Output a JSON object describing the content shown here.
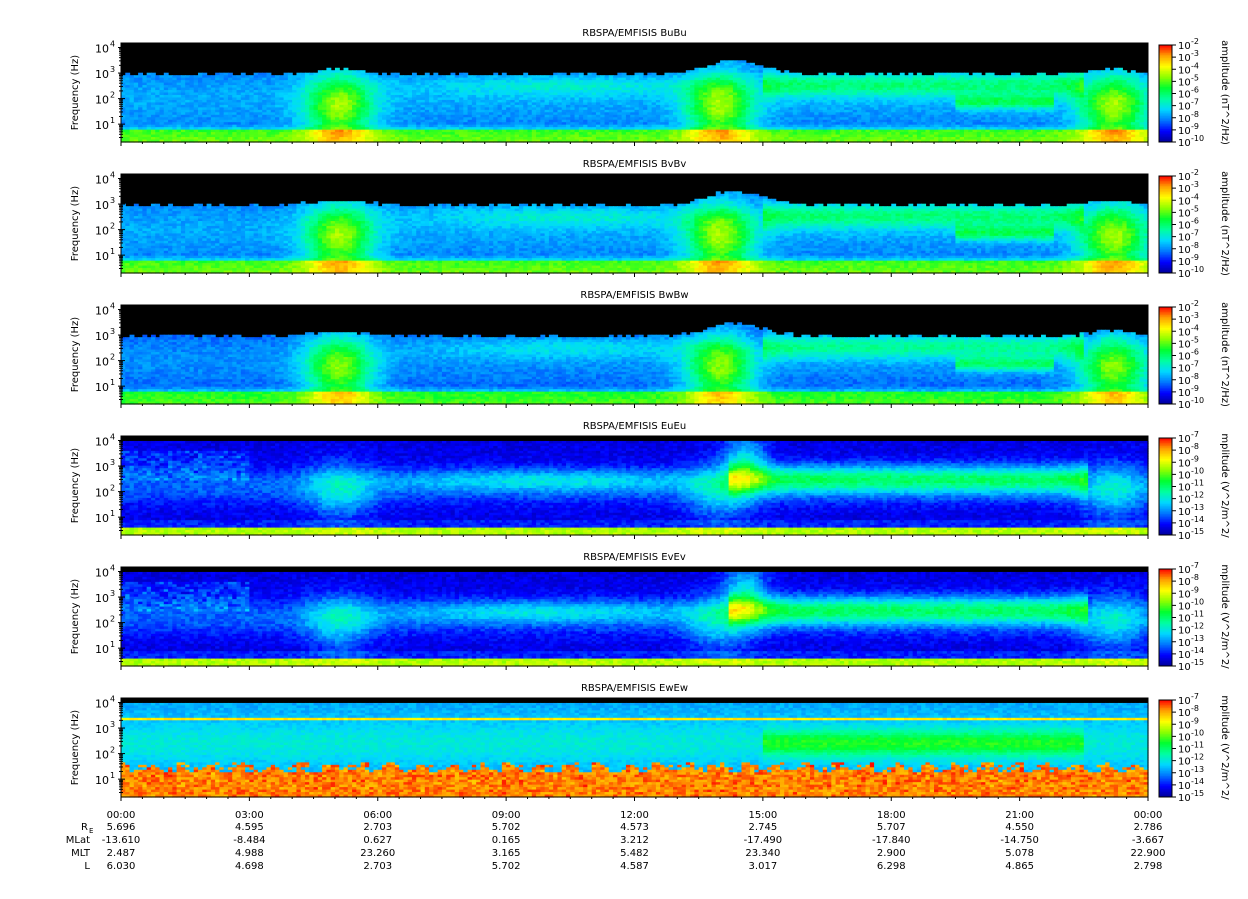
{
  "chart_data": {
    "type": "heatmap",
    "x_axis": {
      "tick_labels": [
        "00:00",
        "03:00",
        "06:00",
        "09:00",
        "12:00",
        "15:00",
        "18:00",
        "21:00",
        "00:00"
      ],
      "xlim_hours": [
        0,
        24
      ]
    },
    "y_axis": {
      "label": "Frequency (Hz)",
      "scale": "log",
      "tick_labels": [
        "10",
        "10",
        "10",
        "10"
      ],
      "tick_exponents": [
        "1",
        "2",
        "3",
        "4"
      ],
      "ylim_hz": [
        2,
        15000
      ]
    },
    "panels": [
      {
        "title": "RBSPA/EMFISIS  BuBu",
        "colorbar_label": "amplitude (nT^2/Hz)",
        "colorbar_exponents": [
          "-2",
          "-3",
          "-4",
          "-5",
          "-6",
          "-7",
          "-8",
          "-9",
          "-10"
        ],
        "field": "B",
        "variant": "u"
      },
      {
        "title": "RBSPA/EMFISIS  BvBv",
        "colorbar_label": "amplitude (nT^2/Hz)",
        "colorbar_exponents": [
          "-2",
          "-3",
          "-4",
          "-5",
          "-6",
          "-7",
          "-8",
          "-9",
          "-10"
        ],
        "field": "B",
        "variant": "v"
      },
      {
        "title": "RBSPA/EMFISIS  BwBw",
        "colorbar_label": "amplitude (nT^2/Hz)",
        "colorbar_exponents": [
          "-2",
          "-3",
          "-4",
          "-5",
          "-6",
          "-7",
          "-8",
          "-9",
          "-10"
        ],
        "field": "B",
        "variant": "w"
      },
      {
        "title": "RBSPA/EMFISIS  EuEu",
        "colorbar_label": "mplitude (V^2/m^2/",
        "colorbar_exponents": [
          "-7",
          "-8",
          "-9",
          "-10",
          "-11",
          "-12",
          "-13",
          "-14",
          "-15"
        ],
        "field": "E",
        "variant": "u"
      },
      {
        "title": "RBSPA/EMFISIS  EvEv",
        "colorbar_label": "mplitude (V^2/m^2/",
        "colorbar_exponents": [
          "-7",
          "-8",
          "-9",
          "-10",
          "-11",
          "-12",
          "-13",
          "-14",
          "-15"
        ],
        "field": "E",
        "variant": "v"
      },
      {
        "title": "RBSPA/EMFISIS  EwEw",
        "colorbar_label": "mplitude (V^2/m^2/",
        "colorbar_exponents": [
          "-7",
          "-8",
          "-9",
          "-10",
          "-11",
          "-12",
          "-13",
          "-14",
          "-15"
        ],
        "field": "E",
        "variant": "w"
      }
    ],
    "ephemeris": {
      "labels": [
        "R",
        "MLat",
        "MLT",
        "L"
      ],
      "re_subscript": "E",
      "rows": [
        [
          "5.696",
          "4.595",
          "2.703",
          "5.702",
          "4.573",
          "2.745",
          "5.707",
          "4.550",
          "2.786"
        ],
        [
          "-13.610",
          "-8.484",
          "0.627",
          "0.165",
          "3.212",
          "-17.490",
          "-17.840",
          "-14.750",
          "-3.667"
        ],
        [
          "2.487",
          "4.988",
          "23.260",
          "3.165",
          "5.482",
          "23.340",
          "2.900",
          "5.078",
          "22.900"
        ],
        [
          "6.030",
          "4.698",
          "2.703",
          "5.702",
          "4.587",
          "3.017",
          "6.298",
          "4.865",
          "2.798"
        ]
      ]
    }
  },
  "colors": {
    "background": "#ffffff",
    "no_data": "#000000",
    "colormap": [
      "#00009a",
      "#0000ff",
      "#0077ff",
      "#00d8ff",
      "#00ffa0",
      "#00ff30",
      "#8cff00",
      "#ffff00",
      "#ffa000",
      "#ff0000"
    ]
  }
}
